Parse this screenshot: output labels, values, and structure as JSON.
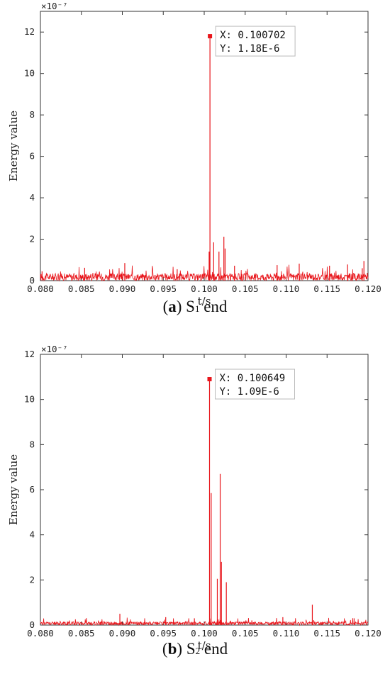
{
  "chart_data": [
    {
      "type": "line",
      "caption_letter": "a",
      "caption_prefix": "S",
      "caption_sub": "1",
      "caption_suffix": " end",
      "xlabel": "t/s",
      "ylabel": "Energy value",
      "exponent": "×10⁻⁷",
      "xlim": [
        0.08,
        0.12
      ],
      "ylim": [
        0,
        13
      ],
      "xticks": [
        "0.080",
        "0.085",
        "0.090",
        "0.095",
        "0.100",
        "0.105",
        "0.110",
        "0.115",
        "0.120"
      ],
      "yticks": [
        "0",
        "2",
        "4",
        "6",
        "8",
        "10",
        "12"
      ],
      "series_color": "#e8151b",
      "peaks": [
        [
          0.100702,
          11.8
        ],
        [
          0.10115,
          1.85
        ],
        [
          0.1024,
          2.12
        ],
        [
          0.10255,
          1.55
        ],
        [
          0.1018,
          1.4
        ],
        [
          0.1006,
          1.4
        ],
        [
          0.0903,
          0.85
        ],
        [
          0.0854,
          0.62
        ],
        [
          0.1116,
          0.82
        ],
        [
          0.1175,
          0.78
        ],
        [
          0.1195,
          0.95
        ],
        [
          0.1193,
          0.6
        ],
        [
          0.1089,
          0.75
        ],
        [
          0.1153,
          0.72
        ],
        [
          0.0967,
          0.55
        ],
        [
          0.1037,
          0.72
        ],
        [
          0.0802,
          0.45
        ]
      ],
      "noise_level": 0.35,
      "marker": {
        "x": 0.100702,
        "y": 11.8
      },
      "annotation": {
        "x_label": "X: 0.100702",
        "y_label": "Y: 1.18E-6"
      }
    },
    {
      "type": "line",
      "caption_letter": "b",
      "caption_prefix": "S",
      "caption_sub": "2",
      "caption_suffix": " end",
      "xlabel": "t/s",
      "ylabel": "Energy value",
      "exponent": "×10⁻⁷",
      "xlim": [
        0.08,
        0.12
      ],
      "ylim": [
        0,
        12
      ],
      "xticks": [
        "0.080",
        "0.085",
        "0.090",
        "0.095",
        "0.100",
        "0.105",
        "0.110",
        "0.115",
        "0.120"
      ],
      "yticks": [
        "0",
        "2",
        "4",
        "6",
        "8",
        "10",
        "12"
      ],
      "series_color": "#e8151b",
      "peaks": [
        [
          0.100649,
          10.9
        ],
        [
          0.10085,
          5.85
        ],
        [
          0.10195,
          6.7
        ],
        [
          0.1016,
          2.05
        ],
        [
          0.1027,
          1.9
        ],
        [
          0.1021,
          2.8
        ],
        [
          0.1132,
          0.9
        ],
        [
          0.0897,
          0.5
        ],
        [
          0.0953,
          0.35
        ],
        [
          0.1096,
          0.35
        ],
        [
          0.0988,
          0.3
        ],
        [
          0.1183,
          0.3
        ]
      ],
      "noise_level": 0.15,
      "marker": {
        "x": 0.100649,
        "y": 10.9
      },
      "annotation": {
        "x_label": "X: 0.100649",
        "y_label": "Y: 1.09E-6"
      }
    }
  ]
}
